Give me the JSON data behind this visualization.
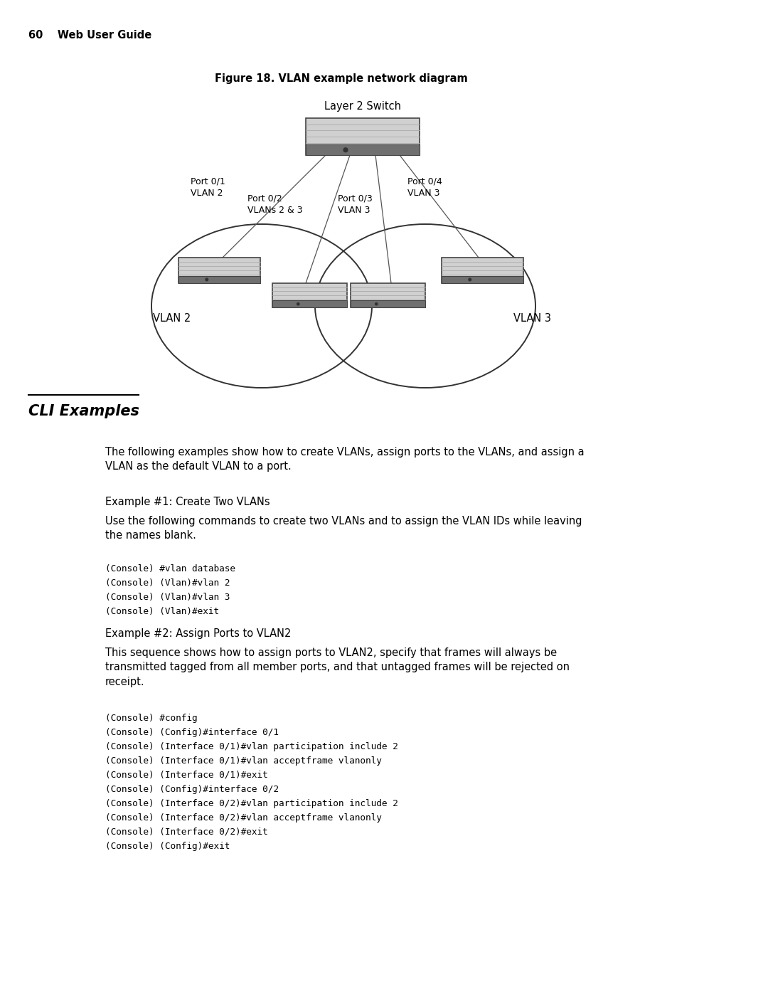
{
  "page_header": "60    Web User Guide",
  "figure_title": "Figure 18. VLAN example network diagram",
  "diagram_title": "Layer 2 Switch",
  "vlan2_label": "VLAN 2",
  "vlan3_label": "VLAN 3",
  "section_title": "CLI Examples",
  "para1": "The following examples show how to create VLANs, assign ports to the VLANs, and assign a\nVLAN as the default VLAN to a port.",
  "example1_title": "Example #1: Create Two VLANs",
  "example1_para": "Use the following commands to create two VLANs and to assign the VLAN IDs while leaving\nthe names blank.",
  "code1_lines": [
    "(Console) #vlan database",
    "(Console) (Vlan)#vlan 2",
    "(Console) (Vlan)#vlan 3",
    "(Console) (Vlan)#exit"
  ],
  "example2_title": "Example #2: Assign Ports to VLAN2",
  "example2_para": "This sequence shows how to assign ports to VLAN2, specify that frames will always be\ntransmitted tagged from all member ports, and that untagged frames will be rejected on\nreceipt.",
  "code2_lines": [
    "(Console) #config",
    "(Console) (Config)#interface 0/1",
    "(Console) (Interface 0/1)#vlan participation include 2",
    "(Console) (Interface 0/1)#vlan acceptframe vlanonly",
    "(Console) (Interface 0/1)#exit",
    "(Console) (Config)#interface 0/2",
    "(Console) (Interface 0/2)#vlan participation include 2",
    "(Console) (Interface 0/2)#vlan acceptframe vlanonly",
    "(Console) (Interface 0/2)#exit",
    "(Console) (Config)#exit"
  ],
  "bg_color": "#ffffff",
  "text_color": "#000000",
  "port01_label": "Port 0/1\nVLAN 2",
  "port02_label": "Port 0/2\nVLANs 2 & 3",
  "port03_label": "Port 0/3\nVLAN 3",
  "port04_label": "Port 0/4\nVLAN 3"
}
